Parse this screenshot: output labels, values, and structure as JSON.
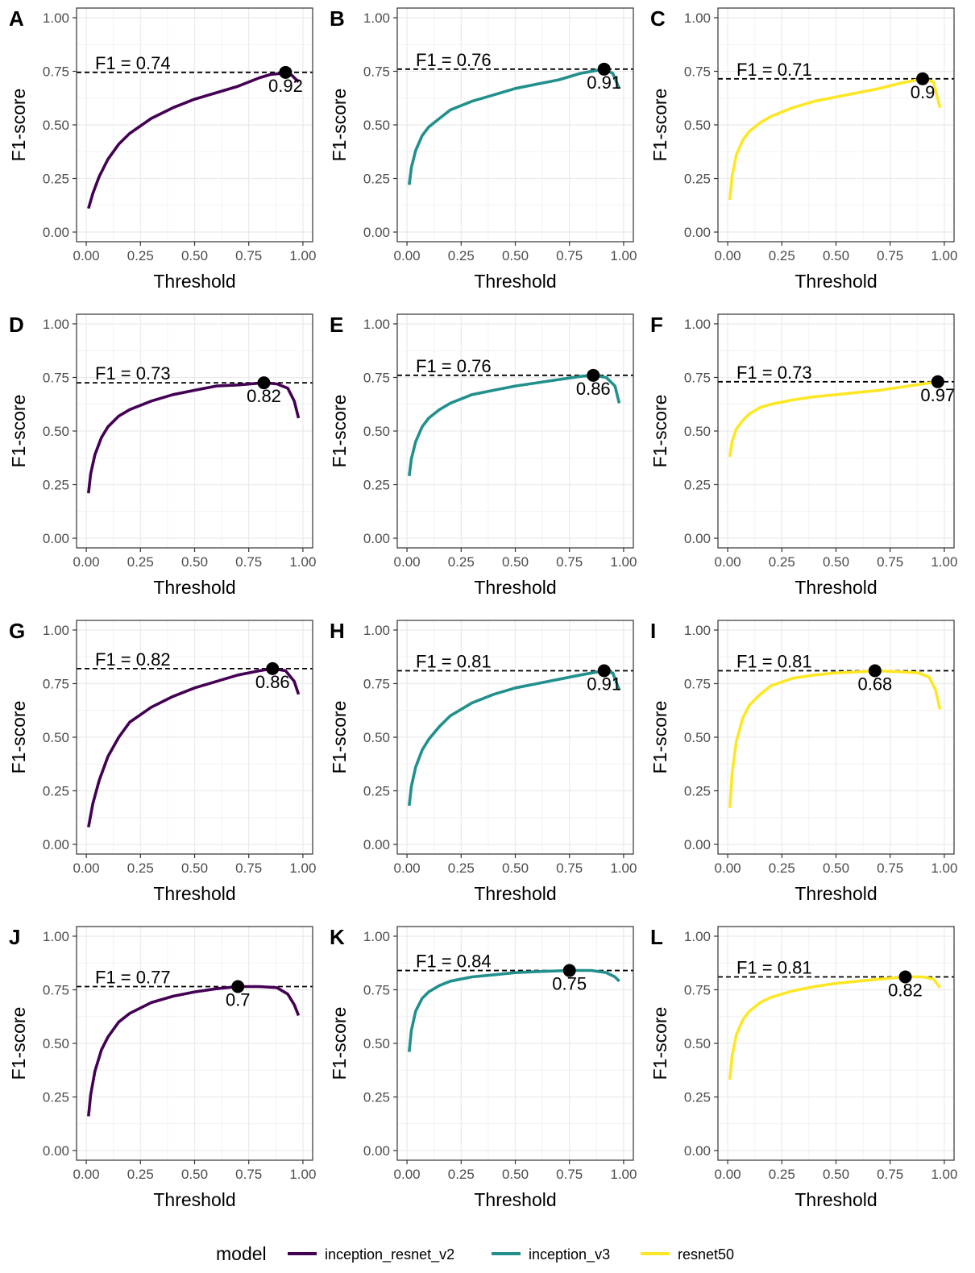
{
  "chart_data": {
    "type": "line",
    "legend": {
      "title": "model",
      "position": "bottom",
      "entries": [
        {
          "label": "inception_resnet_v2",
          "color": "#440154"
        },
        {
          "label": "inception_v3",
          "color": "#21908C"
        },
        {
          "label": "resnet50",
          "color": "#FDE725"
        }
      ]
    },
    "xlabel": "Threshold",
    "ylabel": "F1-score",
    "xlim": [
      0,
      1
    ],
    "ylim": [
      0,
      1
    ],
    "xticks": [
      0,
      0.25,
      0.5,
      0.75,
      1
    ],
    "xtick_labels": [
      "0.00",
      "0.25",
      "0.50",
      "0.75",
      "1.00"
    ],
    "yticks": [
      0,
      0.25,
      0.5,
      0.75,
      1
    ],
    "ytick_labels": [
      "0.00",
      "0.25",
      "0.50",
      "0.75",
      "1.00"
    ],
    "grid": true,
    "panels": [
      {
        "tag": "A",
        "model": "inception_resnet_v2",
        "f1_label": "F1 = 0.74",
        "best_f1": 0.745,
        "threshold_label": "0.92",
        "best_threshold": 0.92,
        "x": [
          0.01,
          0.03,
          0.06,
          0.1,
          0.15,
          0.2,
          0.3,
          0.4,
          0.5,
          0.6,
          0.7,
          0.8,
          0.85,
          0.9,
          0.92,
          0.95,
          0.98
        ],
        "y": [
          0.11,
          0.18,
          0.26,
          0.34,
          0.41,
          0.46,
          0.53,
          0.58,
          0.62,
          0.65,
          0.68,
          0.72,
          0.735,
          0.74,
          0.745,
          0.73,
          0.7
        ]
      },
      {
        "tag": "B",
        "model": "inception_v3",
        "f1_label": "F1 = 0.76",
        "best_f1": 0.76,
        "threshold_label": "0.91",
        "best_threshold": 0.91,
        "x": [
          0.01,
          0.02,
          0.04,
          0.07,
          0.1,
          0.15,
          0.2,
          0.3,
          0.4,
          0.5,
          0.6,
          0.7,
          0.8,
          0.88,
          0.91,
          0.95,
          0.98
        ],
        "y": [
          0.22,
          0.3,
          0.38,
          0.45,
          0.49,
          0.53,
          0.57,
          0.61,
          0.64,
          0.67,
          0.69,
          0.71,
          0.74,
          0.755,
          0.76,
          0.74,
          0.67
        ]
      },
      {
        "tag": "C",
        "model": "resnet50",
        "f1_label": "F1 = 0.71",
        "best_f1": 0.715,
        "threshold_label": "0.9",
        "best_threshold": 0.9,
        "x": [
          0.01,
          0.02,
          0.04,
          0.07,
          0.1,
          0.15,
          0.2,
          0.3,
          0.4,
          0.5,
          0.6,
          0.7,
          0.8,
          0.9,
          0.95,
          0.98
        ],
        "y": [
          0.15,
          0.26,
          0.36,
          0.43,
          0.47,
          0.51,
          0.54,
          0.58,
          0.61,
          0.63,
          0.65,
          0.67,
          0.695,
          0.715,
          0.7,
          0.58
        ]
      },
      {
        "tag": "D",
        "model": "inception_resnet_v2",
        "f1_label": "F1 = 0.73",
        "best_f1": 0.725,
        "threshold_label": "0.82",
        "best_threshold": 0.82,
        "x": [
          0.01,
          0.02,
          0.04,
          0.07,
          0.1,
          0.15,
          0.2,
          0.3,
          0.4,
          0.5,
          0.6,
          0.7,
          0.82,
          0.88,
          0.93,
          0.96,
          0.98
        ],
        "y": [
          0.21,
          0.3,
          0.39,
          0.47,
          0.52,
          0.57,
          0.6,
          0.64,
          0.67,
          0.69,
          0.71,
          0.715,
          0.725,
          0.72,
          0.7,
          0.64,
          0.56
        ]
      },
      {
        "tag": "E",
        "model": "inception_v3",
        "f1_label": "F1 = 0.76",
        "best_f1": 0.76,
        "threshold_label": "0.86",
        "best_threshold": 0.86,
        "x": [
          0.01,
          0.02,
          0.04,
          0.07,
          0.1,
          0.15,
          0.2,
          0.3,
          0.4,
          0.5,
          0.6,
          0.7,
          0.8,
          0.86,
          0.92,
          0.96,
          0.98
        ],
        "y": [
          0.29,
          0.37,
          0.45,
          0.52,
          0.56,
          0.6,
          0.63,
          0.67,
          0.69,
          0.71,
          0.725,
          0.74,
          0.755,
          0.76,
          0.75,
          0.71,
          0.63
        ]
      },
      {
        "tag": "F",
        "model": "resnet50",
        "f1_label": "F1 = 0.73",
        "best_f1": 0.73,
        "threshold_label": "0.97",
        "best_threshold": 0.97,
        "x": [
          0.01,
          0.02,
          0.04,
          0.07,
          0.1,
          0.15,
          0.2,
          0.3,
          0.4,
          0.5,
          0.6,
          0.7,
          0.8,
          0.9,
          0.97,
          0.98
        ],
        "y": [
          0.38,
          0.45,
          0.51,
          0.55,
          0.58,
          0.61,
          0.625,
          0.645,
          0.66,
          0.67,
          0.68,
          0.69,
          0.705,
          0.72,
          0.73,
          0.725
        ]
      },
      {
        "tag": "G",
        "model": "inception_resnet_v2",
        "f1_label": "F1 = 0.82",
        "best_f1": 0.82,
        "threshold_label": "0.86",
        "best_threshold": 0.86,
        "x": [
          0.01,
          0.03,
          0.06,
          0.1,
          0.15,
          0.2,
          0.3,
          0.4,
          0.5,
          0.6,
          0.7,
          0.8,
          0.86,
          0.92,
          0.96,
          0.98
        ],
        "y": [
          0.08,
          0.19,
          0.3,
          0.41,
          0.5,
          0.57,
          0.64,
          0.69,
          0.73,
          0.76,
          0.79,
          0.81,
          0.82,
          0.81,
          0.76,
          0.7
        ]
      },
      {
        "tag": "H",
        "model": "inception_v3",
        "f1_label": "F1 = 0.81",
        "best_f1": 0.81,
        "threshold_label": "0.91",
        "best_threshold": 0.91,
        "x": [
          0.01,
          0.02,
          0.04,
          0.07,
          0.1,
          0.15,
          0.2,
          0.3,
          0.4,
          0.5,
          0.6,
          0.7,
          0.8,
          0.91,
          0.95,
          0.98
        ],
        "y": [
          0.18,
          0.27,
          0.36,
          0.44,
          0.49,
          0.55,
          0.6,
          0.66,
          0.7,
          0.73,
          0.75,
          0.77,
          0.79,
          0.81,
          0.8,
          0.72
        ]
      },
      {
        "tag": "I",
        "model": "resnet50",
        "f1_label": "F1 = 0.81",
        "best_f1": 0.81,
        "threshold_label": "0.68",
        "best_threshold": 0.68,
        "x": [
          0.01,
          0.02,
          0.04,
          0.07,
          0.1,
          0.15,
          0.2,
          0.3,
          0.4,
          0.5,
          0.6,
          0.68,
          0.8,
          0.88,
          0.93,
          0.96,
          0.98
        ],
        "y": [
          0.17,
          0.33,
          0.48,
          0.59,
          0.65,
          0.7,
          0.74,
          0.775,
          0.79,
          0.8,
          0.805,
          0.81,
          0.805,
          0.8,
          0.78,
          0.72,
          0.63
        ]
      },
      {
        "tag": "J",
        "model": "inception_resnet_v2",
        "f1_label": "F1 = 0.77",
        "best_f1": 0.765,
        "threshold_label": "0.7",
        "best_threshold": 0.7,
        "x": [
          0.01,
          0.02,
          0.04,
          0.07,
          0.1,
          0.15,
          0.2,
          0.3,
          0.4,
          0.5,
          0.6,
          0.7,
          0.8,
          0.88,
          0.93,
          0.96,
          0.98
        ],
        "y": [
          0.16,
          0.26,
          0.37,
          0.47,
          0.53,
          0.6,
          0.64,
          0.69,
          0.72,
          0.74,
          0.755,
          0.765,
          0.765,
          0.76,
          0.73,
          0.68,
          0.63
        ]
      },
      {
        "tag": "K",
        "model": "inception_v3",
        "f1_label": "F1 = 0.84",
        "best_f1": 0.84,
        "threshold_label": "0.75",
        "best_threshold": 0.75,
        "x": [
          0.01,
          0.02,
          0.04,
          0.07,
          0.1,
          0.15,
          0.2,
          0.3,
          0.4,
          0.5,
          0.6,
          0.75,
          0.85,
          0.92,
          0.96,
          0.98
        ],
        "y": [
          0.46,
          0.56,
          0.65,
          0.71,
          0.74,
          0.77,
          0.79,
          0.81,
          0.82,
          0.83,
          0.835,
          0.84,
          0.84,
          0.83,
          0.81,
          0.79
        ]
      },
      {
        "tag": "L",
        "model": "resnet50",
        "f1_label": "F1 = 0.81",
        "best_f1": 0.81,
        "threshold_label": "0.82",
        "best_threshold": 0.82,
        "x": [
          0.01,
          0.02,
          0.04,
          0.07,
          0.1,
          0.15,
          0.2,
          0.3,
          0.4,
          0.5,
          0.6,
          0.7,
          0.82,
          0.9,
          0.95,
          0.98
        ],
        "y": [
          0.33,
          0.44,
          0.54,
          0.61,
          0.65,
          0.69,
          0.715,
          0.745,
          0.765,
          0.78,
          0.79,
          0.8,
          0.81,
          0.81,
          0.8,
          0.76
        ]
      }
    ]
  }
}
